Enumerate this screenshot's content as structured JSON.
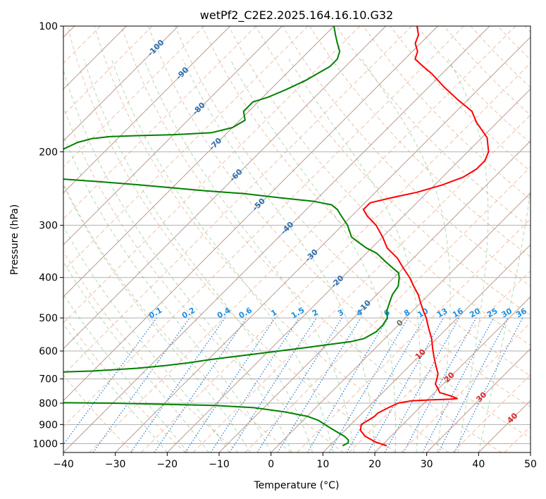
{
  "chart_data": {
    "type": "line",
    "title": "wetPf2_C2E2.2025.164.16.10.G32",
    "xlabel": "Temperature (°C)",
    "ylabel": "Pressure (hPa)",
    "xlim": [
      -40,
      50
    ],
    "ylim": [
      1050,
      100
    ],
    "y_scale": "log",
    "skew": true,
    "grid": true,
    "x_ticks": [
      -40,
      -30,
      -20,
      -10,
      0,
      10,
      20,
      30,
      40,
      50
    ],
    "y_ticks": [
      100,
      200,
      300,
      400,
      500,
      600,
      700,
      800,
      900,
      1000
    ],
    "isotherm_labels": [
      {
        "text": "-100",
        "value": -100,
        "p": 113
      },
      {
        "text": "-90",
        "value": -90,
        "p": 130
      },
      {
        "text": "-80",
        "value": -80,
        "p": 158
      },
      {
        "text": "-70",
        "value": -70,
        "p": 192
      },
      {
        "text": "-60",
        "value": -60,
        "p": 228
      },
      {
        "text": "-50",
        "value": -50,
        "p": 268
      },
      {
        "text": "-40",
        "value": -40,
        "p": 305
      },
      {
        "text": "-30",
        "value": -30,
        "p": 355
      },
      {
        "text": "-20",
        "value": -20,
        "p": 410
      },
      {
        "text": "-10",
        "value": -10,
        "p": 470
      }
    ],
    "mixing_ratio_labels": [
      "0.1",
      "0.2",
      "0.4",
      "0.6",
      "1",
      "1.5",
      "2",
      "3",
      "4",
      "6",
      "8",
      "10",
      "13",
      "16",
      "20",
      "25",
      "30",
      "36"
    ],
    "positive_isotherm_labels": [
      {
        "text": "0",
        "value": 0,
        "p": 515
      },
      {
        "text": "10",
        "value": 10,
        "p": 612
      },
      {
        "text": "20",
        "value": 20,
        "p": 695
      },
      {
        "text": "30",
        "value": 30,
        "p": 775
      },
      {
        "text": "40",
        "value": 40,
        "p": 870
      }
    ],
    "series": [
      {
        "role": "temperature",
        "color": "#ff0000",
        "points": [
          [
            1012,
            21
          ],
          [
            990,
            18
          ],
          [
            960,
            15
          ],
          [
            930,
            13
          ],
          [
            900,
            12
          ],
          [
            880,
            12.5
          ],
          [
            860,
            13
          ],
          [
            845,
            13
          ],
          [
            820,
            14
          ],
          [
            800,
            15
          ],
          [
            790,
            17
          ],
          [
            785,
            21
          ],
          [
            783,
            24
          ],
          [
            780,
            25.5
          ],
          [
            770,
            24
          ],
          [
            755,
            21
          ],
          [
            740,
            20
          ],
          [
            720,
            18.5
          ],
          [
            700,
            17.8
          ],
          [
            680,
            17
          ],
          [
            650,
            15
          ],
          [
            620,
            13
          ],
          [
            590,
            11
          ],
          [
            560,
            9
          ],
          [
            530,
            6.5
          ],
          [
            500,
            4
          ],
          [
            480,
            2
          ],
          [
            460,
            0
          ],
          [
            440,
            -2
          ],
          [
            420,
            -4.5
          ],
          [
            400,
            -7
          ],
          [
            380,
            -10
          ],
          [
            360,
            -13
          ],
          [
            340,
            -17
          ],
          [
            320,
            -20
          ],
          [
            300,
            -23.5
          ],
          [
            285,
            -27
          ],
          [
            275,
            -29
          ],
          [
            265,
            -29
          ],
          [
            258,
            -26
          ],
          [
            250,
            -22
          ],
          [
            240,
            -18.5
          ],
          [
            230,
            -16
          ],
          [
            220,
            -15
          ],
          [
            210,
            -15
          ],
          [
            200,
            -16
          ],
          [
            185,
            -19
          ],
          [
            170,
            -24
          ],
          [
            160,
            -27
          ],
          [
            150,
            -32
          ],
          [
            140,
            -37
          ],
          [
            130,
            -42
          ],
          [
            125,
            -45
          ],
          [
            120,
            -48
          ],
          [
            115,
            -49
          ],
          [
            110,
            -51
          ],
          [
            105,
            -52
          ],
          [
            100,
            -54
          ]
        ]
      },
      {
        "role": "dewpoint",
        "color": "#008000",
        "points": [
          [
            1012,
            12.5
          ],
          [
            995,
            13
          ],
          [
            980,
            12.5
          ],
          [
            960,
            11
          ],
          [
            940,
            9
          ],
          [
            920,
            7
          ],
          [
            900,
            5
          ],
          [
            880,
            3
          ],
          [
            860,
            0
          ],
          [
            840,
            -5
          ],
          [
            820,
            -12
          ],
          [
            810,
            -20
          ],
          [
            805,
            -30
          ],
          [
            800,
            -40
          ],
          [
            797,
            -55
          ],
          [
            795,
            -70
          ],
          [
            793,
            -90
          ],
          [
            791,
            -110
          ],
          [
            790,
            -125
          ],
          [
            789,
            -140
          ],
          [
            690,
            -140
          ],
          [
            688,
            -110
          ],
          [
            685,
            -80
          ],
          [
            680,
            -65
          ],
          [
            670,
            -50
          ],
          [
            660,
            -42
          ],
          [
            650,
            -37
          ],
          [
            640,
            -33
          ],
          [
            630,
            -30
          ],
          [
            620,
            -26
          ],
          [
            610,
            -22
          ],
          [
            600,
            -18
          ],
          [
            590,
            -14
          ],
          [
            580,
            -10
          ],
          [
            570,
            -6
          ],
          [
            560,
            -4
          ],
          [
            540,
            -3
          ],
          [
            520,
            -3
          ],
          [
            500,
            -3.5
          ],
          [
            480,
            -5
          ],
          [
            460,
            -6
          ],
          [
            440,
            -7
          ],
          [
            420,
            -7.5
          ],
          [
            400,
            -9
          ],
          [
            390,
            -10
          ],
          [
            380,
            -12
          ],
          [
            365,
            -15
          ],
          [
            350,
            -18
          ],
          [
            340,
            -21
          ],
          [
            330,
            -23.5
          ],
          [
            320,
            -26
          ],
          [
            300,
            -29
          ],
          [
            285,
            -32
          ],
          [
            275,
            -34
          ],
          [
            268,
            -36
          ],
          [
            263,
            -40
          ],
          [
            258,
            -47
          ],
          [
            252,
            -55
          ],
          [
            248,
            -63
          ],
          [
            244,
            -70
          ],
          [
            240,
            -77
          ],
          [
            236,
            -85
          ],
          [
            232,
            -94
          ],
          [
            229,
            -100
          ],
          [
            226,
            -104
          ],
          [
            220,
            -104
          ],
          [
            210,
            -101
          ],
          [
            200,
            -99
          ],
          [
            190,
            -97
          ],
          [
            186,
            -95
          ],
          [
            184,
            -92
          ],
          [
            183,
            -87
          ],
          [
            182,
            -80
          ],
          [
            180,
            -73
          ],
          [
            175,
            -70
          ],
          [
            168,
            -69
          ],
          [
            160,
            -71
          ],
          [
            152,
            -71
          ],
          [
            148,
            -69
          ],
          [
            142,
            -67
          ],
          [
            135,
            -65
          ],
          [
            125,
            -63
          ],
          [
            120,
            -63
          ],
          [
            115,
            -64
          ],
          [
            110,
            -66
          ],
          [
            105,
            -68
          ],
          [
            100,
            -70
          ]
        ]
      }
    ]
  }
}
